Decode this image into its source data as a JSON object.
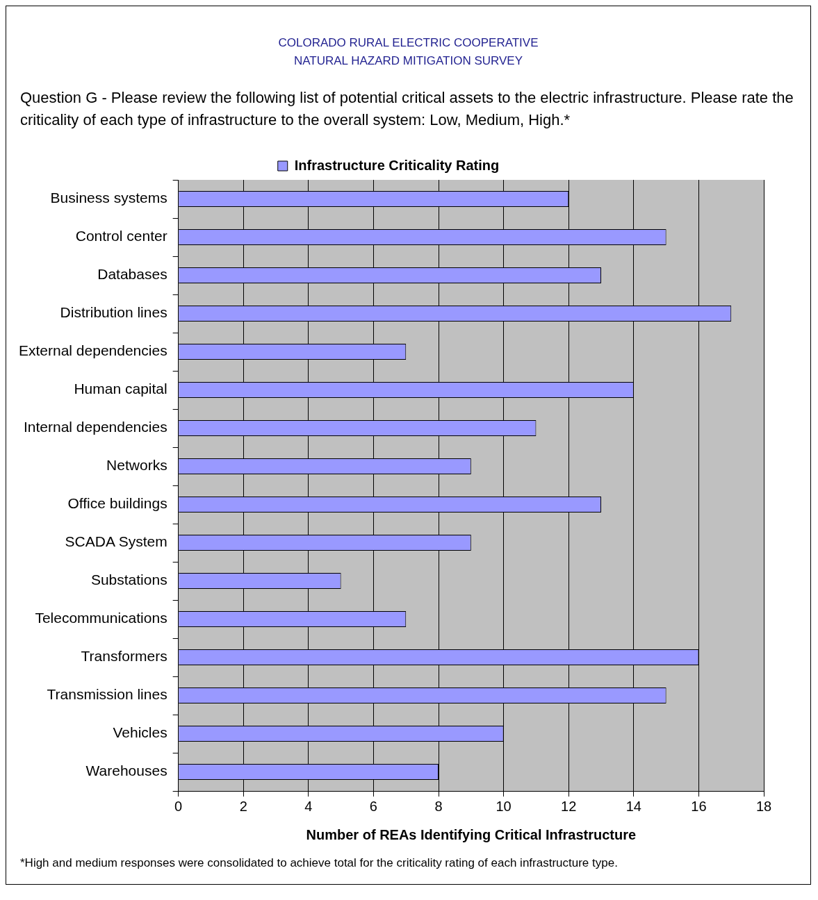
{
  "chart_data": {
    "type": "bar",
    "orientation": "horizontal",
    "title": "COLORADO RURAL ELECTRIC COOPERATIVE NATURAL HAZARD MITIGATION SURVEY",
    "subtitle": "Question G - Please review the following list of potential critical assets to the electric infrastructure. Please rate the criticality of each type of infrastructure to the overall system: Low, Medium, High.*",
    "xlabel": "Number of REAs Identifying Critical Infrastructure",
    "categories": [
      "Business systems",
      "Control center",
      "Databases",
      "Distribution lines",
      "External dependencies",
      "Human capital",
      "Internal dependencies",
      "Networks",
      "Office buildings",
      "SCADA System",
      "Substations",
      "Telecommunications",
      "Transformers",
      "Transmission lines",
      "Vehicles",
      "Warehouses"
    ],
    "series": [
      {
        "name": "Infrastructure Criticality Rating",
        "color": "#9999ff",
        "values": [
          12,
          15,
          13,
          17,
          7,
          14,
          11,
          9,
          13,
          9,
          5,
          7,
          16,
          15,
          10,
          8
        ]
      }
    ],
    "xlim": [
      0,
      18
    ],
    "xticks": [
      0,
      2,
      4,
      6,
      8,
      10,
      12,
      14,
      16,
      18
    ],
    "grid": "x",
    "legend": "top",
    "annotations": [
      "*High and medium responses were consolidated to achieve total for the criticality rating of each infrastructure type."
    ]
  }
}
